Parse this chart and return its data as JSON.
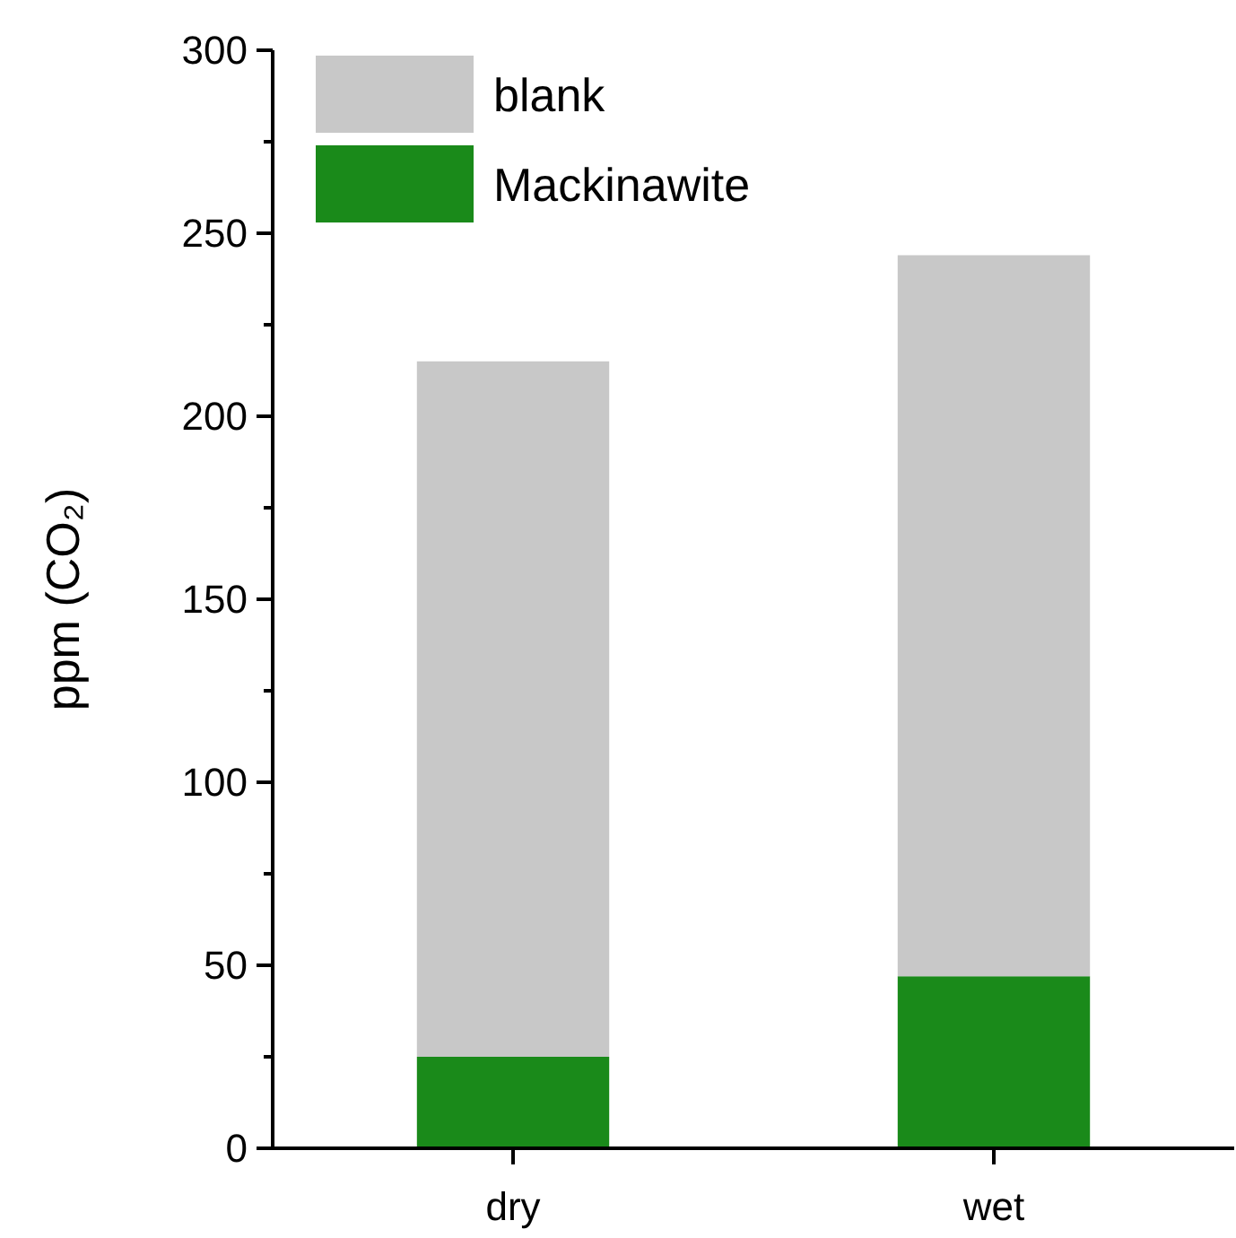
{
  "chart_data": {
    "type": "bar",
    "stacked": true,
    "ylabel": "ppm (CO₂)",
    "categories": [
      "dry",
      "wet"
    ],
    "series": [
      {
        "name": "Mackinawite",
        "color": "#1a8a1a",
        "values": [
          25,
          47
        ]
      },
      {
        "name": "blank",
        "color": "#c8c8c8",
        "values": [
          190,
          197
        ]
      }
    ],
    "ylim": [
      0,
      300
    ],
    "yticks": [
      0,
      {
        "value": 25,
        "label": null
      },
      50,
      {
        "value": 75,
        "label": null
      },
      100,
      {
        "value": 125,
        "label": null
      },
      150,
      {
        "value": 175,
        "label": null
      },
      200,
      {
        "value": 225,
        "label": null
      },
      250,
      {
        "value": 275,
        "label": null
      },
      300
    ],
    "legend": "top left"
  }
}
